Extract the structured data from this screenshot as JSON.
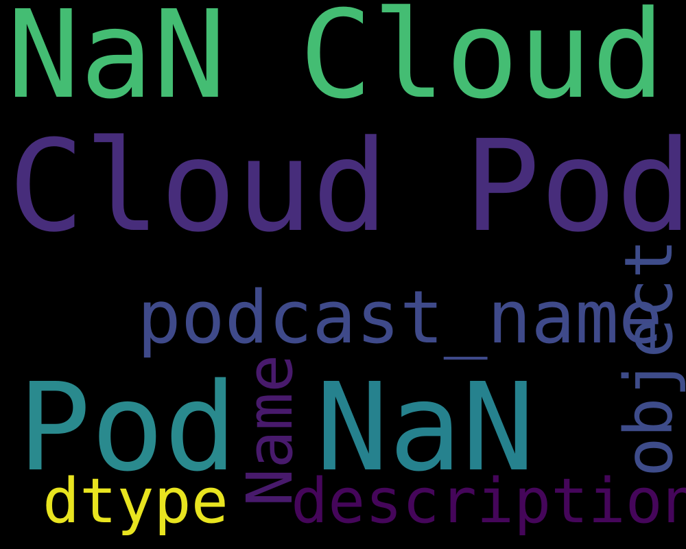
{
  "colors": {
    "background": "#000000"
  },
  "words": [
    {
      "id": "w-nan-cloud",
      "text": "NaN Cloud",
      "color": "#44bd73",
      "orientation": "horizontal"
    },
    {
      "id": "w-cloud-pod",
      "text": "Cloud Pod",
      "color": "#472d7b",
      "orientation": "horizontal"
    },
    {
      "id": "w-podcast",
      "text": "podcast_name",
      "color": "#3f4a8a",
      "orientation": "horizontal"
    },
    {
      "id": "w-object",
      "text": "object",
      "color": "#3e4c8a",
      "orientation": "vertical"
    },
    {
      "id": "w-pod",
      "text": "Pod",
      "color": "#2a8a8e",
      "orientation": "horizontal"
    },
    {
      "id": "w-nan",
      "text": "NaN",
      "color": "#26828e",
      "orientation": "horizontal"
    },
    {
      "id": "w-name",
      "text": "Name",
      "color": "#481a6c",
      "orientation": "vertical"
    },
    {
      "id": "w-dtype",
      "text": "dtype",
      "color": "#e8e420",
      "orientation": "horizontal"
    },
    {
      "id": "w-description",
      "text": "description",
      "color": "#45065a",
      "orientation": "horizontal"
    }
  ]
}
